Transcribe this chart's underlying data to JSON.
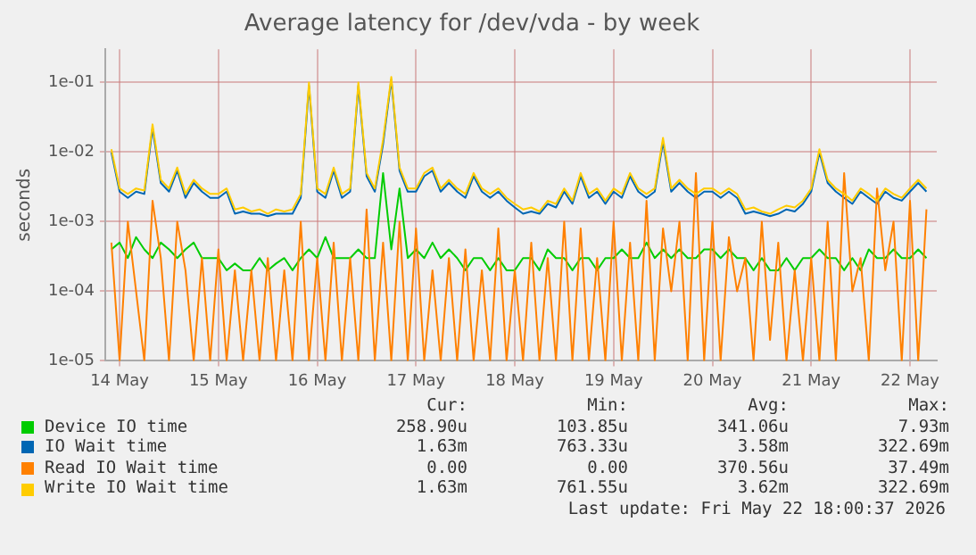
{
  "chart_data": {
    "type": "line",
    "title": "Average latency for /dev/vda - by week",
    "ylabel": "seconds",
    "log": "y",
    "grid": true,
    "legend": "bottom",
    "marker": "none",
    "line_style": "solid",
    "xlim": [
      "2026-05-13T20:30",
      "2026-05-22T06:30"
    ],
    "xticks": [
      {
        "value": "2026-05-14",
        "label": "14 May"
      },
      {
        "value": "2026-05-15",
        "label": "15 May"
      },
      {
        "value": "2026-05-16",
        "label": "16 May"
      },
      {
        "value": "2026-05-17",
        "label": "17 May"
      },
      {
        "value": "2026-05-18",
        "label": "18 May"
      },
      {
        "value": "2026-05-19",
        "label": "19 May"
      },
      {
        "value": "2026-05-20",
        "label": "20 May"
      },
      {
        "value": "2026-05-21",
        "label": "21 May"
      },
      {
        "value": "2026-05-22",
        "label": "22 May"
      }
    ],
    "ylim": [
      1e-05,
      0.3
    ],
    "yticks": [
      {
        "value": 1e-05,
        "label": "1e-05"
      },
      {
        "value": 0.0001,
        "label": "1e-04"
      },
      {
        "value": 0.001,
        "label": "1e-03"
      },
      {
        "value": 0.01,
        "label": "1e-02"
      },
      {
        "value": 0.1,
        "label": "1e-01"
      }
    ],
    "x": [
      "2026-05-13T22:00",
      "2026-05-14T00:00",
      "2026-05-14T02:00",
      "2026-05-14T04:00",
      "2026-05-14T06:00",
      "2026-05-14T08:00",
      "2026-05-14T10:00",
      "2026-05-14T12:00",
      "2026-05-14T14:00",
      "2026-05-14T16:00",
      "2026-05-14T18:00",
      "2026-05-14T20:00",
      "2026-05-14T22:00",
      "2026-05-15T00:00",
      "2026-05-15T02:00",
      "2026-05-15T04:00",
      "2026-05-15T06:00",
      "2026-05-15T08:00",
      "2026-05-15T10:00",
      "2026-05-15T12:00",
      "2026-05-15T14:00",
      "2026-05-15T16:00",
      "2026-05-15T18:00",
      "2026-05-15T20:00",
      "2026-05-15T22:00",
      "2026-05-16T00:00",
      "2026-05-16T02:00",
      "2026-05-16T04:00",
      "2026-05-16T06:00",
      "2026-05-16T08:00",
      "2026-05-16T10:00",
      "2026-05-16T12:00",
      "2026-05-16T14:00",
      "2026-05-16T16:00",
      "2026-05-16T18:00",
      "2026-05-16T20:00",
      "2026-05-16T22:00",
      "2026-05-17T00:00",
      "2026-05-17T02:00",
      "2026-05-17T04:00",
      "2026-05-17T06:00",
      "2026-05-17T08:00",
      "2026-05-17T10:00",
      "2026-05-17T12:00",
      "2026-05-17T14:00",
      "2026-05-17T16:00",
      "2026-05-17T18:00",
      "2026-05-17T20:00",
      "2026-05-17T22:00",
      "2026-05-18T00:00",
      "2026-05-18T02:00",
      "2026-05-18T04:00",
      "2026-05-18T06:00",
      "2026-05-18T08:00",
      "2026-05-18T10:00",
      "2026-05-18T12:00",
      "2026-05-18T14:00",
      "2026-05-18T16:00",
      "2026-05-18T18:00",
      "2026-05-18T20:00",
      "2026-05-18T22:00",
      "2026-05-19T00:00",
      "2026-05-19T02:00",
      "2026-05-19T04:00",
      "2026-05-19T06:00",
      "2026-05-19T08:00",
      "2026-05-19T10:00",
      "2026-05-19T12:00",
      "2026-05-19T14:00",
      "2026-05-19T16:00",
      "2026-05-19T18:00",
      "2026-05-19T20:00",
      "2026-05-19T22:00",
      "2026-05-20T00:00",
      "2026-05-20T02:00",
      "2026-05-20T04:00",
      "2026-05-20T06:00",
      "2026-05-20T08:00",
      "2026-05-20T10:00",
      "2026-05-20T12:00",
      "2026-05-20T14:00",
      "2026-05-20T16:00",
      "2026-05-20T18:00",
      "2026-05-20T20:00",
      "2026-05-20T22:00",
      "2026-05-21T00:00",
      "2026-05-21T02:00",
      "2026-05-21T04:00",
      "2026-05-21T06:00",
      "2026-05-21T08:00",
      "2026-05-21T10:00",
      "2026-05-21T12:00",
      "2026-05-21T14:00",
      "2026-05-21T16:00",
      "2026-05-21T18:00",
      "2026-05-21T20:00",
      "2026-05-21T22:00",
      "2026-05-22T00:00",
      "2026-05-22T02:00",
      "2026-05-22T04:00"
    ],
    "series": [
      {
        "name": "Device IO time",
        "color": "#00cc00",
        "values": [
          0.0004,
          0.0005,
          0.0003,
          0.0006,
          0.0004,
          0.0003,
          0.0005,
          0.0004,
          0.0003,
          0.0004,
          0.0005,
          0.0003,
          0.0003,
          0.0003,
          0.0002,
          0.00025,
          0.0002,
          0.0002,
          0.0003,
          0.0002,
          0.00025,
          0.0003,
          0.0002,
          0.0003,
          0.0004,
          0.0003,
          0.0006,
          0.0003,
          0.0003,
          0.0003,
          0.0004,
          0.0003,
          0.0003,
          0.005,
          0.0004,
          0.003,
          0.0003,
          0.0004,
          0.0003,
          0.0005,
          0.0003,
          0.0004,
          0.0003,
          0.0002,
          0.0003,
          0.0003,
          0.0002,
          0.0003,
          0.0002,
          0.0002,
          0.0003,
          0.0003,
          0.0002,
          0.0004,
          0.0003,
          0.0003,
          0.0002,
          0.0003,
          0.0003,
          0.0002,
          0.0003,
          0.0003,
          0.0004,
          0.0003,
          0.0003,
          0.0005,
          0.0003,
          0.0004,
          0.0003,
          0.0004,
          0.0003,
          0.0003,
          0.0004,
          0.0004,
          0.0003,
          0.0004,
          0.0003,
          0.0003,
          0.0002,
          0.0003,
          0.0002,
          0.0002,
          0.0003,
          0.0002,
          0.0003,
          0.0003,
          0.0004,
          0.0003,
          0.0003,
          0.0002,
          0.0003,
          0.0002,
          0.0004,
          0.0003,
          0.0003,
          0.0004,
          0.0003,
          0.0003,
          0.0004,
          0.0003
        ]
      },
      {
        "name": "IO Wait time",
        "color": "#0066b3",
        "values": [
          0.0099,
          0.0027,
          0.0022,
          0.0027,
          0.0025,
          0.022,
          0.0036,
          0.0027,
          0.0054,
          0.0022,
          0.0036,
          0.0027,
          0.0022,
          0.0022,
          0.0027,
          0.0013,
          0.0014,
          0.0013,
          0.0013,
          0.0012,
          0.0013,
          0.0013,
          0.0013,
          0.0022,
          0.09,
          0.0027,
          0.0022,
          0.0054,
          0.0022,
          0.0027,
          0.09,
          0.0045,
          0.0027,
          0.013,
          0.11,
          0.0054,
          0.0027,
          0.0027,
          0.0045,
          0.0054,
          0.0027,
          0.0036,
          0.0027,
          0.0022,
          0.0045,
          0.0027,
          0.0022,
          0.0027,
          0.002,
          0.0016,
          0.0013,
          0.0014,
          0.0013,
          0.0018,
          0.0016,
          0.0027,
          0.0018,
          0.0045,
          0.0022,
          0.0027,
          0.0018,
          0.0027,
          0.0022,
          0.0045,
          0.0027,
          0.0022,
          0.0027,
          0.014,
          0.0027,
          0.0036,
          0.0027,
          0.0022,
          0.0027,
          0.0027,
          0.0022,
          0.0027,
          0.0022,
          0.0013,
          0.0014,
          0.0013,
          0.0012,
          0.0013,
          0.0015,
          0.0014,
          0.0018,
          0.0027,
          0.0099,
          0.0036,
          0.0027,
          0.0022,
          0.0018,
          0.0027,
          0.0022,
          0.0018,
          0.0027,
          0.0022,
          0.002,
          0.0027,
          0.0036,
          0.0027
        ]
      },
      {
        "name": "Read IO Wait time",
        "color": "#ff8000",
        "values": [
          0.0005,
          1e-05,
          0.001,
          0.0001,
          1e-05,
          0.002,
          0.0003,
          1e-05,
          0.001,
          0.0002,
          1e-05,
          0.0003,
          1e-05,
          0.0004,
          1e-05,
          0.0002,
          1e-05,
          0.0002,
          1e-05,
          0.0003,
          1e-05,
          0.0002,
          1e-05,
          0.001,
          1e-05,
          0.0003,
          1e-05,
          0.0005,
          1e-05,
          0.0003,
          1e-05,
          0.0015,
          1e-05,
          0.0005,
          1e-05,
          0.001,
          1e-05,
          0.0008,
          1e-05,
          0.0002,
          1e-05,
          0.0003,
          1e-05,
          0.0004,
          1e-05,
          0.0002,
          1e-05,
          0.0008,
          1e-05,
          0.0002,
          1e-05,
          0.0005,
          1e-05,
          0.0003,
          1e-05,
          0.001,
          1e-05,
          0.0008,
          1e-05,
          0.0003,
          1e-05,
          0.001,
          1e-05,
          0.0005,
          1e-05,
          0.002,
          1e-05,
          0.0008,
          0.0001,
          0.001,
          1e-05,
          0.005,
          1e-05,
          0.001,
          1e-05,
          0.0006,
          0.0001,
          0.0003,
          1e-05,
          0.001,
          2e-05,
          0.0005,
          1e-05,
          0.0002,
          1e-05,
          0.0003,
          1e-05,
          0.001,
          1e-05,
          0.005,
          0.0001,
          0.0003,
          1e-05,
          0.003,
          0.0002,
          0.001,
          1e-05,
          0.002,
          1e-05,
          0.0015
        ]
      },
      {
        "name": "Write IO Wait time",
        "color": "#ffcc00",
        "values": [
          0.011,
          0.003,
          0.0025,
          0.003,
          0.0028,
          0.025,
          0.004,
          0.003,
          0.006,
          0.0025,
          0.004,
          0.003,
          0.0025,
          0.0025,
          0.003,
          0.0015,
          0.0016,
          0.0014,
          0.0015,
          0.0013,
          0.0015,
          0.0014,
          0.0015,
          0.0025,
          0.1,
          0.003,
          0.0025,
          0.006,
          0.0025,
          0.003,
          0.1,
          0.005,
          0.003,
          0.015,
          0.12,
          0.006,
          0.003,
          0.003,
          0.005,
          0.006,
          0.003,
          0.004,
          0.003,
          0.0025,
          0.005,
          0.003,
          0.0025,
          0.003,
          0.0022,
          0.0018,
          0.0015,
          0.0016,
          0.0014,
          0.002,
          0.0018,
          0.003,
          0.002,
          0.005,
          0.0025,
          0.003,
          0.002,
          0.003,
          0.0025,
          0.005,
          0.003,
          0.0025,
          0.003,
          0.016,
          0.003,
          0.004,
          0.003,
          0.0025,
          0.003,
          0.003,
          0.0025,
          0.003,
          0.0025,
          0.0015,
          0.0016,
          0.0014,
          0.0013,
          0.0015,
          0.0017,
          0.0016,
          0.002,
          0.003,
          0.011,
          0.004,
          0.003,
          0.0025,
          0.002,
          0.003,
          0.0025,
          0.002,
          0.003,
          0.0025,
          0.0022,
          0.003,
          0.004,
          0.003
        ]
      }
    ],
    "annotations": [
      "Cur:",
      "Min:",
      "Avg:",
      "Max:",
      "258.90u",
      "103.85u",
      "341.06u",
      "7.93m",
      "1.63m",
      "763.33u",
      "3.58m",
      "322.69m",
      "0.00",
      "0.00",
      "370.56u",
      "37.49m",
      "1.63m",
      "761.55u",
      "3.62m",
      "322.69m",
      "Last update: Fri May 22 18:00:37 2026"
    ]
  }
}
